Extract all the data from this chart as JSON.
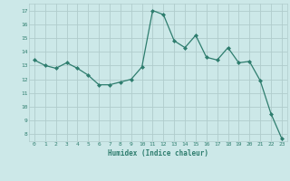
{
  "x": [
    0,
    1,
    2,
    3,
    4,
    5,
    6,
    7,
    8,
    9,
    10,
    11,
    12,
    13,
    14,
    15,
    16,
    17,
    18,
    19,
    20,
    21,
    22,
    23
  ],
  "y": [
    13.4,
    13.0,
    12.8,
    13.2,
    12.8,
    12.3,
    11.6,
    11.6,
    11.8,
    12.0,
    12.9,
    17.0,
    16.7,
    14.8,
    14.3,
    15.2,
    13.6,
    13.4,
    14.3,
    13.2,
    13.3,
    11.9,
    9.5,
    7.7
  ],
  "xlabel": "Humidex (Indice chaleur)",
  "ylim": [
    7.5,
    17.5
  ],
  "xlim": [
    -0.5,
    23.5
  ],
  "line_color": "#2e7d6e",
  "marker_color": "#2e7d6e",
  "bg_color": "#cce8e8",
  "grid_color": "#b0cccc",
  "tick_label_color": "#2e7d6e",
  "xlabel_color": "#2e7d6e",
  "yticks": [
    8,
    9,
    10,
    11,
    12,
    13,
    14,
    15,
    16,
    17
  ],
  "xticks": [
    0,
    1,
    2,
    3,
    4,
    5,
    6,
    7,
    8,
    9,
    10,
    11,
    12,
    13,
    14,
    15,
    16,
    17,
    18,
    19,
    20,
    21,
    22,
    23
  ]
}
